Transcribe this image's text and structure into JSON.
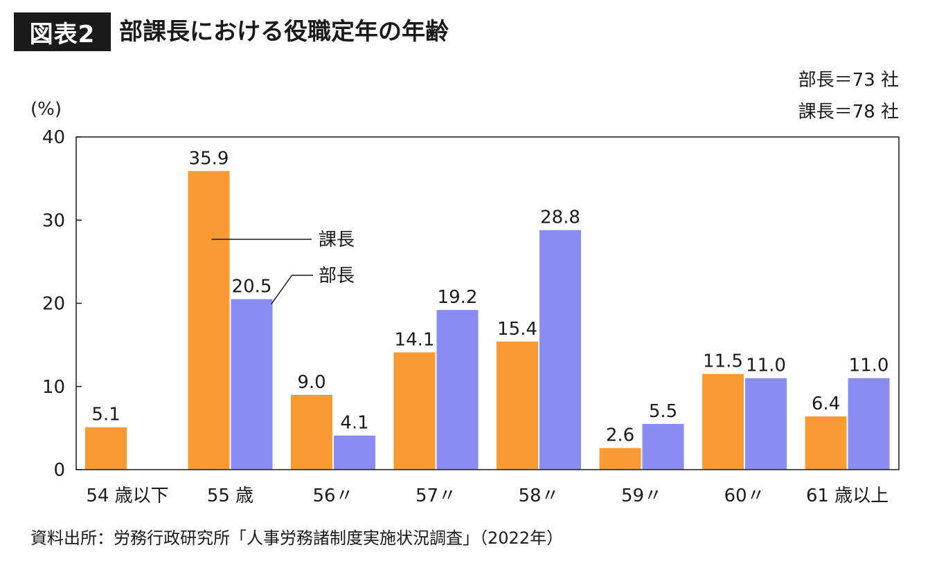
{
  "figure": {
    "badge": "図表2",
    "title": "部課長における役職定年の年齢",
    "notes": [
      "部長＝73 社",
      "課長＝78 社"
    ],
    "y_unit": "(%)",
    "source": "資料出所：労務行政研究所「人事労務諸制度実施状況調査」（2022年）"
  },
  "colors": {
    "kacho": "#f99b32",
    "bucho": "#8b8cf1",
    "axis": "#1a1a1a"
  },
  "chart_data": {
    "type": "bar",
    "categories": [
      "54 歳以下",
      "55 歳",
      "56〃",
      "57〃",
      "58〃",
      "59〃",
      "60〃",
      "61 歳以上"
    ],
    "series": [
      {
        "name": "課長",
        "color": "#f99b32",
        "values": [
          5.1,
          35.9,
          9.0,
          14.1,
          15.4,
          2.6,
          11.5,
          6.4
        ],
        "labels": [
          "5.1",
          "35.9",
          "9.0",
          "14.1",
          "15.4",
          "2.6",
          "11.5",
          "6.4"
        ]
      },
      {
        "name": "部長",
        "color": "#8b8cf1",
        "values": [
          null,
          20.5,
          4.1,
          19.2,
          28.8,
          5.5,
          11.0,
          11.0
        ],
        "labels": [
          "",
          "20.5",
          "4.1",
          "19.2",
          "28.8",
          "5.5",
          "11.0",
          "11.0"
        ]
      }
    ],
    "ylim": [
      0,
      40
    ],
    "yticks": [
      0,
      10,
      20,
      30,
      40
    ],
    "ylabel": "(%)",
    "xlabel": "",
    "grid": false,
    "legend": "inline annotations near 55 歳 bars"
  }
}
